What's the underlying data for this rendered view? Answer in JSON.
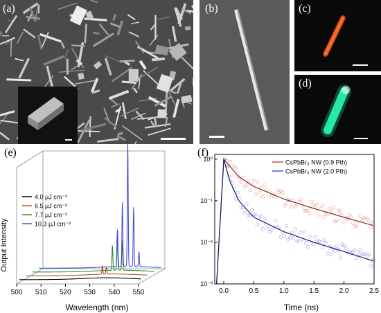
{
  "panels": {
    "a": {
      "label": "(a)"
    },
    "b": {
      "label": "(b)"
    },
    "c": {
      "label": "(c)"
    },
    "d": {
      "label": "(d)"
    },
    "e": {
      "label": "(e)"
    },
    "f": {
      "label": "(f)"
    }
  },
  "colors": {
    "sem_bg": "#4a4a4a",
    "dark_bg": "#0a0a0a",
    "nw_red": "#ff5a1e",
    "nw_green": "#28e8a8",
    "black": "#000000",
    "brown": "#b5541c",
    "green": "#2e8b2e",
    "blue": "#4b4bd8",
    "red": "#e04040"
  },
  "chart_data": [
    {
      "type": "line",
      "panel": "e",
      "xlabel": "Wavelength (nm)",
      "ylabel": "Output Intensity",
      "xlim": [
        500,
        550
      ],
      "xticks": [
        500,
        510,
        520,
        530,
        540,
        550
      ],
      "legend": {
        "placement": "upper-left"
      },
      "series": [
        {
          "name": "4.0 μJ cm⁻²",
          "color": "#000000",
          "baseline": 0.0,
          "peaks": []
        },
        {
          "name": "6.5 μJ cm⁻²",
          "color": "#b5541c",
          "baseline": 0.06,
          "peaks": [
            [
              531.4,
              0.07
            ],
            [
              533.0,
              0.06
            ]
          ]
        },
        {
          "name": "7.7 μJ cm⁻²",
          "color": "#2e8b2e",
          "baseline": 0.12,
          "peaks": [
            [
              532.8,
              0.2
            ],
            [
              534.8,
              0.32
            ],
            [
              536.8,
              0.24
            ]
          ]
        },
        {
          "name": "10.3 μJ cm⁻²",
          "color": "#4b4bd8",
          "baseline": 0.18,
          "peaks": [
            [
              532.2,
              0.3
            ],
            [
              534.2,
              0.52
            ],
            [
              536.4,
              1.0
            ],
            [
              538.8,
              0.48
            ],
            [
              541.0,
              0.12
            ]
          ]
        }
      ]
    },
    {
      "type": "scatter",
      "panel": "f",
      "xlabel": "Time (ns)",
      "ylabel": "",
      "xlim": [
        -0.15,
        2.5
      ],
      "ylim": [
        0.001,
        1.3
      ],
      "yscale": "log",
      "xticks": [
        0.0,
        0.5,
        1.0,
        1.5,
        2.0,
        2.5
      ],
      "yticks": [
        {
          "value": 1,
          "label": "10⁰"
        },
        {
          "value": 0.1,
          "label": "10⁻¹"
        },
        {
          "value": 0.01,
          "label": "10⁻²"
        },
        {
          "value": 0.001,
          "label": "10⁻³"
        }
      ],
      "legend": {
        "placement": "top-right"
      },
      "series": [
        {
          "name": "CsPbBr₃ NW (0.9 Pth)",
          "color": "#e04040",
          "fit": [
            [
              0.0,
              1.0
            ],
            [
              0.25,
              0.38
            ],
            [
              0.5,
              0.22
            ],
            [
              1.0,
              0.11
            ],
            [
              1.5,
              0.065
            ],
            [
              2.0,
              0.04
            ],
            [
              2.5,
              0.025
            ]
          ]
        },
        {
          "name": "CsPbBr₃ NW (2.0 Pth)",
          "color": "#4b4bd8",
          "fit": [
            [
              0.0,
              1.0
            ],
            [
              0.1,
              0.3
            ],
            [
              0.25,
              0.1
            ],
            [
              0.5,
              0.04
            ],
            [
              1.0,
              0.018
            ],
            [
              1.5,
              0.01
            ],
            [
              2.0,
              0.006
            ],
            [
              2.5,
              0.0035
            ]
          ]
        }
      ]
    }
  ]
}
